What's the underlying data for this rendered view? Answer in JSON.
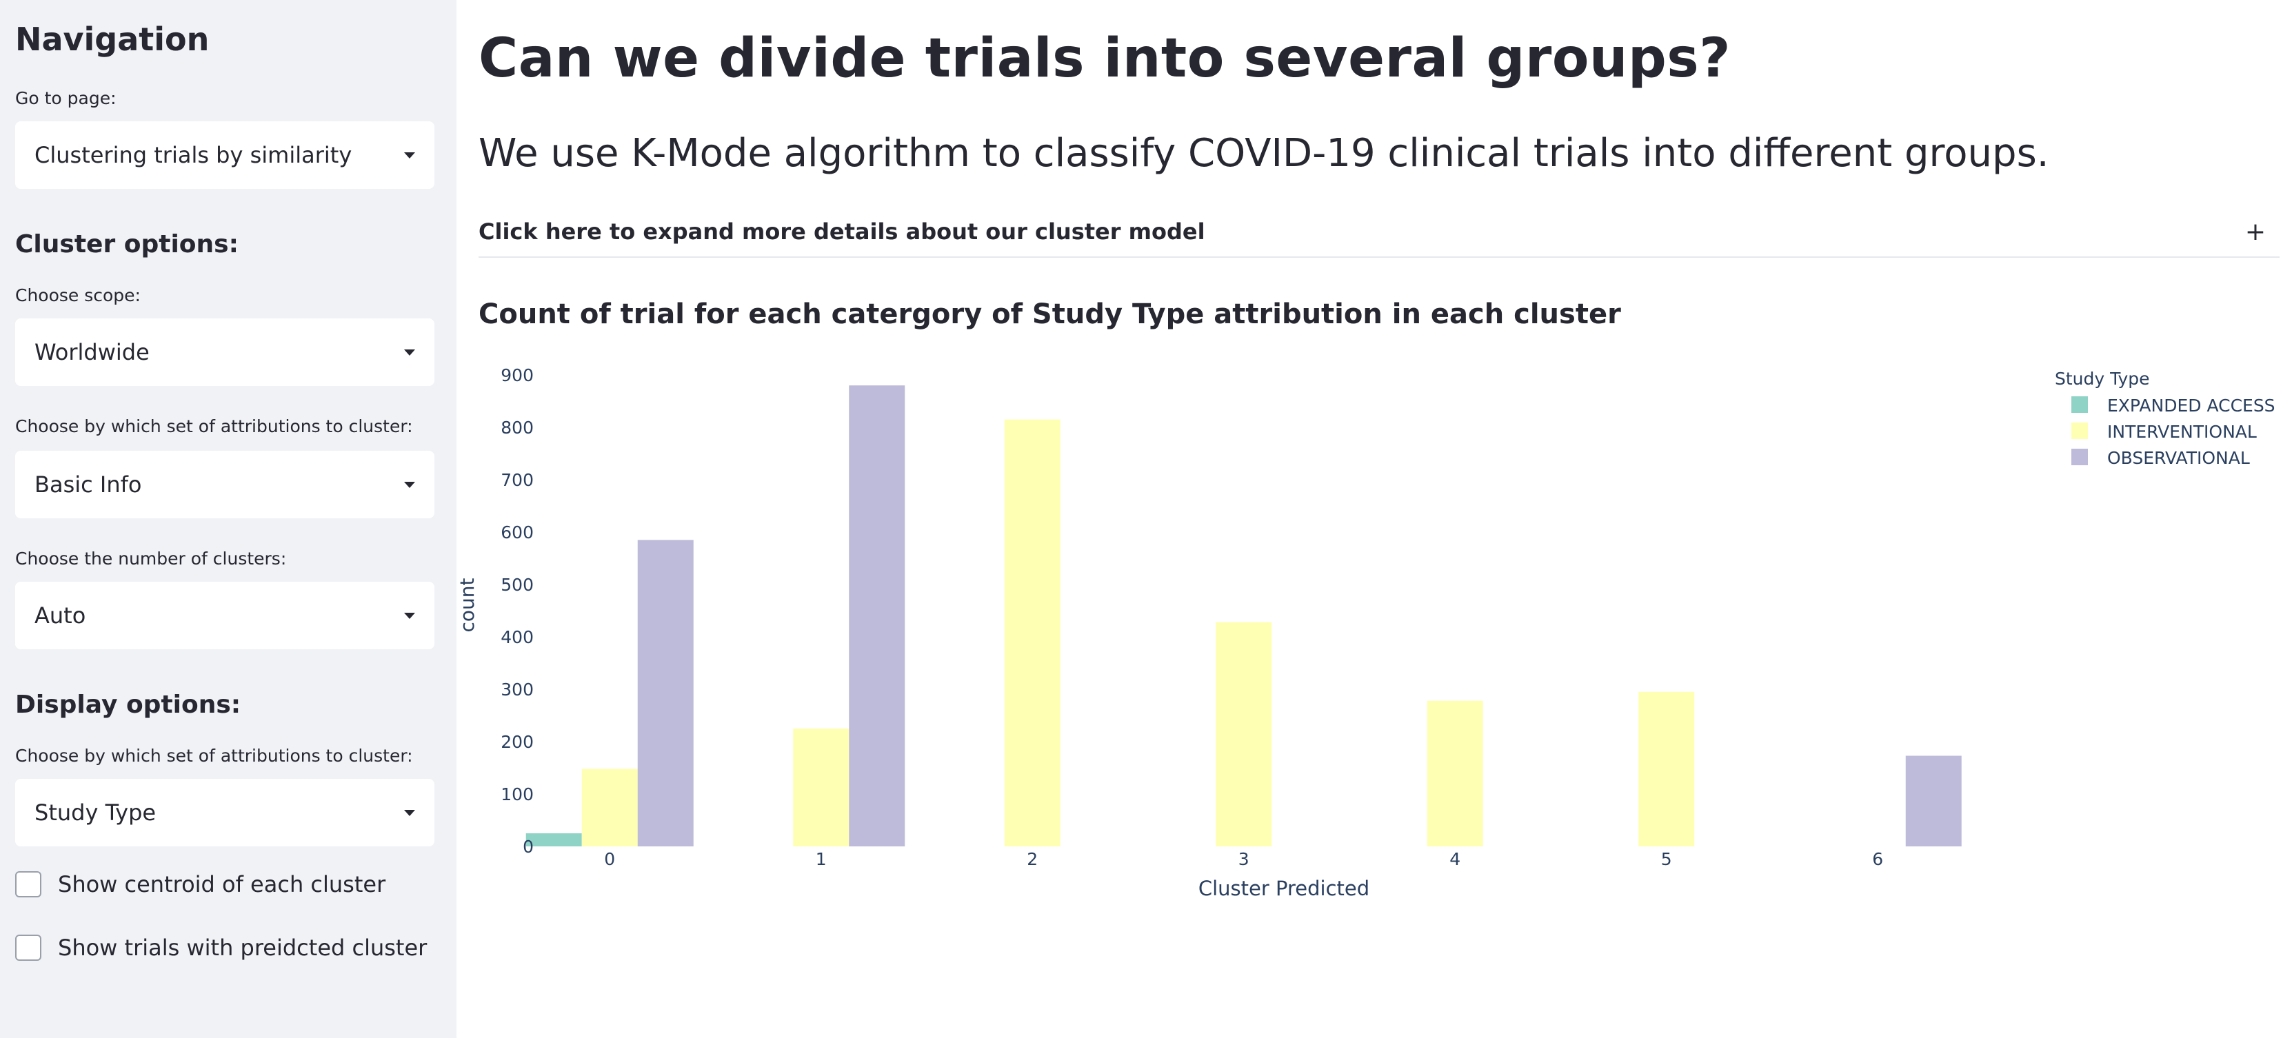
{
  "sidebar": {
    "title": "Navigation",
    "goto_label": "Go to page:",
    "goto_value": "Clustering trials by similarity",
    "cluster_options_title": "Cluster options:",
    "scope_label": "Choose scope:",
    "scope_value": "Worldwide",
    "attr_label": "Choose by which set of attributions to cluster:",
    "attr_value": "Basic Info",
    "num_label": "Choose the number of clusters:",
    "num_value": "Auto",
    "display_options_title": "Display options:",
    "display_attr_label": "Choose by which set of attributions to cluster:",
    "display_attr_value": "Study Type",
    "check_centroid": "Show centroid of each cluster",
    "check_trials": "Show trials with preidcted cluster"
  },
  "main": {
    "title": "Can we divide trials into several groups?",
    "subtitle": "We use K-Mode algorithm to classify COVID-19 clinical trials into different groups.",
    "expander_label": "Click here to expand more details about our cluster model",
    "expander_icon": "+",
    "chart_heading": "Count of trial for each catergory of Study Type attribution in each cluster"
  },
  "chart_data": {
    "type": "bar",
    "title": "",
    "xlabel": "Cluster Predicted",
    "ylabel": "count",
    "ylim": [
      0,
      900
    ],
    "yticks": [
      0,
      100,
      200,
      300,
      400,
      500,
      600,
      700,
      800,
      900
    ],
    "categories": [
      "0",
      "1",
      "2",
      "3",
      "4",
      "5",
      "6"
    ],
    "legend_title": "Study Type",
    "legend_position": "top-right",
    "series": [
      {
        "name": "EXPANDED ACCESS",
        "color": "#8fd3c7",
        "values": [
          25,
          0,
          0,
          0,
          0,
          0,
          0
        ]
      },
      {
        "name": "INTERVENTIONAL",
        "color": "#ffffb3",
        "values": [
          148,
          225,
          815,
          428,
          278,
          295,
          0
        ]
      },
      {
        "name": "OBSERVATIONAL",
        "color": "#bebada",
        "values": [
          585,
          880,
          0,
          0,
          0,
          0,
          173
        ]
      }
    ]
  }
}
